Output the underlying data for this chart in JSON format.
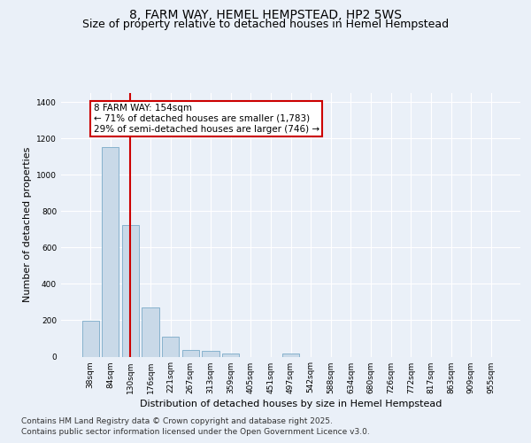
{
  "title_line1": "8, FARM WAY, HEMEL HEMPSTEAD, HP2 5WS",
  "title_line2": "Size of property relative to detached houses in Hemel Hempstead",
  "xlabel": "Distribution of detached houses by size in Hemel Hempstead",
  "ylabel": "Number of detached properties",
  "categories": [
    "38sqm",
    "84sqm",
    "130sqm",
    "176sqm",
    "221sqm",
    "267sqm",
    "313sqm",
    "359sqm",
    "405sqm",
    "451sqm",
    "497sqm",
    "542sqm",
    "588sqm",
    "634sqm",
    "680sqm",
    "726sqm",
    "772sqm",
    "817sqm",
    "863sqm",
    "909sqm",
    "955sqm"
  ],
  "values": [
    195,
    1155,
    725,
    270,
    110,
    37,
    30,
    15,
    0,
    0,
    15,
    0,
    0,
    0,
    0,
    0,
    0,
    0,
    0,
    0,
    0
  ],
  "bar_color": "#c9d9e8",
  "bar_edge_color": "#7aaac8",
  "vline_color": "#cc0000",
  "vline_pos": 2.5,
  "annotation_text": "8 FARM WAY: 154sqm\n← 71% of detached houses are smaller (1,783)\n29% of semi-detached houses are larger (746) →",
  "annotation_box_color": "#cc0000",
  "annotation_text_color": "#000000",
  "annotation_facecolor": "#ffffff",
  "ylim": [
    0,
    1450
  ],
  "yticks": [
    0,
    200,
    400,
    600,
    800,
    1000,
    1200,
    1400
  ],
  "bg_color": "#eaf0f8",
  "plot_bg_color": "#eaf0f8",
  "grid_color": "#ffffff",
  "footer_line1": "Contains HM Land Registry data © Crown copyright and database right 2025.",
  "footer_line2": "Contains public sector information licensed under the Open Government Licence v3.0.",
  "title_fontsize": 10,
  "subtitle_fontsize": 9,
  "axis_label_fontsize": 8,
  "tick_fontsize": 6.5,
  "annotation_fontsize": 7.5,
  "footer_fontsize": 6.5
}
